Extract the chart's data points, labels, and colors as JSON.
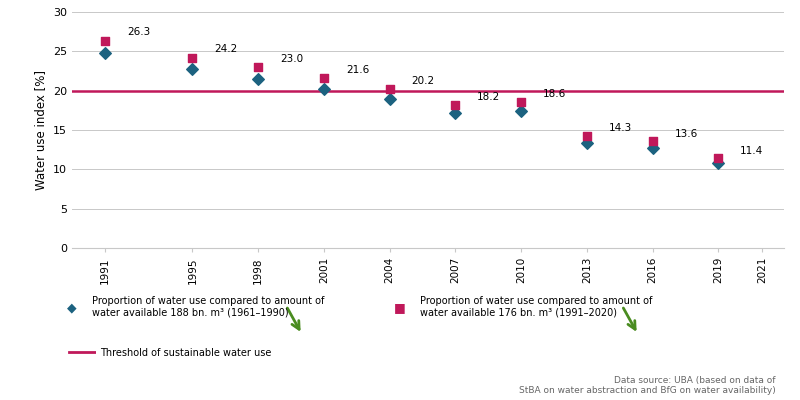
{
  "series1_years": [
    1991,
    1995,
    1998,
    2001,
    2004,
    2007,
    2010,
    2013,
    2016,
    2019
  ],
  "series1_values": [
    24.8,
    22.8,
    21.5,
    20.2,
    19.0,
    17.1,
    17.4,
    13.3,
    12.7,
    10.8
  ],
  "series1_color": "#1c6280",
  "series2_years": [
    1991,
    1995,
    1998,
    2001,
    2004,
    2007,
    2010,
    2013,
    2016,
    2019
  ],
  "series2_values": [
    26.3,
    24.2,
    23.0,
    21.6,
    20.2,
    18.2,
    18.6,
    14.3,
    13.6,
    11.4
  ],
  "series2_color": "#c0185a",
  "series2_labels": [
    "26.3",
    "24.2",
    "23.0",
    "21.6",
    "20.2",
    "18.2",
    "18.6",
    "14.3",
    "13.6",
    "11.4"
  ],
  "threshold": 20.0,
  "threshold_color": "#c0185a",
  "xlim": [
    1989.5,
    2022
  ],
  "ylim": [
    0,
    30
  ],
  "yticks": [
    0,
    5,
    10,
    15,
    20,
    25,
    30
  ],
  "xticks": [
    1991,
    1995,
    1998,
    2001,
    2004,
    2007,
    2010,
    2013,
    2016,
    2019,
    2021
  ],
  "ylabel": "Water use index [%]",
  "legend1_label": "Proportion of water use compared to amount of\nwater available 188 bn. m³ (1961–1990)",
  "legend2_label": "Proportion of water use compared to amount of\nwater available 176 bn. m³ (1991–2020)",
  "legend3_label": "Threshold of sustainable water use",
  "datasource": "Data source: UBA (based on data of\nStBA on water abstraction and BfG on water availability)",
  "background_color": "#ffffff",
  "grid_color": "#c8c8c8",
  "green_arrow_color": "#4a8c20"
}
